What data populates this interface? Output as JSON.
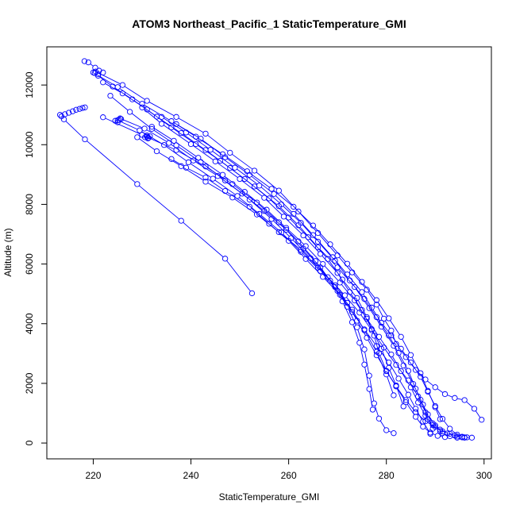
{
  "chart_data": {
    "type": "line",
    "title": "ATOM3 Northeast_Pacific_1 StaticTemperature_GMI",
    "xlabel": "StaticTemperature_GMI",
    "ylabel": "Altitude (m)",
    "xlim": [
      210.5,
      301.5
    ],
    "ylim": [
      -530,
      13280
    ],
    "xticks": [
      220,
      240,
      260,
      280,
      300
    ],
    "yticks": [
      0,
      2000,
      4000,
      6000,
      8000,
      10000,
      12000
    ],
    "marker": "open-circle",
    "line_color": "#0000ff",
    "grid": false,
    "series": [
      {
        "x": [
          213.2,
          213.5,
          214.2,
          215.0,
          215.8,
          216.5,
          217.2,
          217.8,
          218.3
        ],
        "y": [
          11000,
          10950,
          11020,
          11070,
          11120,
          11170,
          11200,
          11230,
          11250
        ]
      },
      {
        "x": [
          214.0,
          218.3,
          229.0,
          238.0,
          247.0,
          252.5
        ],
        "y": [
          10850,
          10180,
          8680,
          7450,
          6180,
          5020
        ]
      },
      {
        "x": [
          218.2,
          219.0,
          220.4,
          221.2,
          222.0,
          221.0,
          220.3
        ],
        "y": [
          12800,
          12760,
          12580,
          12480,
          12420,
          12360,
          12400
        ]
      },
      {
        "x": [
          220.5,
          226.0,
          231.0,
          237.0,
          243.0,
          248.0,
          253.0,
          258.0,
          262.0,
          266.0,
          270.0,
          273.0,
          276.0,
          278.0,
          279.5,
          281.0,
          282.0,
          284.0,
          286.0,
          288.0,
          290.0,
          292.0,
          294.0,
          296.0,
          298.0,
          299.5
        ],
        "y": [
          12450,
          12000,
          11470,
          10930,
          10370,
          9730,
          9130,
          8460,
          7760,
          7040,
          6290,
          5720,
          5140,
          4640,
          4170,
          3770,
          3320,
          2880,
          2450,
          2130,
          1870,
          1640,
          1510,
          1440,
          1150,
          780
        ]
      },
      {
        "x": [
          220.0,
          225.0,
          230.0,
          236.0,
          242.0,
          247.0,
          252.0,
          257.0,
          261.0,
          265.0,
          269.0,
          272.0,
          275.0,
          277.0,
          279.0,
          281.0,
          283.0,
          285.0,
          287.0,
          288.5,
          290.0,
          291.5,
          293.0,
          294.5,
          296.0,
          297.5
        ],
        "y": [
          12420,
          11930,
          11370,
          10790,
          10200,
          9580,
          8990,
          8350,
          7680,
          6970,
          6230,
          5650,
          5060,
          4540,
          4030,
          3610,
          3160,
          2700,
          2220,
          1720,
          1240,
          810,
          480,
          280,
          190,
          180
        ]
      },
      {
        "x": [
          221.0,
          224.0,
          228.0,
          233.0,
          238.0,
          243.0,
          248.0,
          253.0,
          258.0,
          262.0,
          266.0,
          270.0,
          273.5,
          276.5,
          279.0,
          281.5,
          283.5,
          285.5,
          287.0,
          288.5,
          290.0,
          291.5,
          293.0,
          294.5,
          296.0
        ],
        "y": [
          12310,
          11950,
          11520,
          10940,
          10390,
          9820,
          9220,
          8600,
          7940,
          7300,
          6560,
          5890,
          5230,
          4520,
          3900,
          3260,
          2600,
          1980,
          1450,
          960,
          590,
          330,
          230,
          180,
          180
        ]
      },
      {
        "x": [
          222.0,
          226.0,
          231.0,
          236.0,
          241.0,
          246.0,
          251.0,
          256.0,
          260.0,
          264.0,
          268.0,
          271.0,
          274.0,
          276.0,
          277.5,
          278.5,
          280.0,
          282.0,
          284.0,
          286.0,
          288.0,
          290.0,
          291.5,
          293.0,
          294.5,
          295.5
        ],
        "y": [
          12090,
          11720,
          11180,
          10580,
          10020,
          9460,
          8850,
          8200,
          7560,
          6900,
          6170,
          5480,
          4860,
          4220,
          3600,
          3010,
          2420,
          1900,
          1440,
          1040,
          730,
          540,
          390,
          310,
          220,
          190
        ]
      },
      {
        "x": [
          223.5,
          227.5,
          232.0,
          237.0,
          242.0,
          247.0,
          252.0,
          256.5,
          260.5,
          264.5,
          268.0,
          271.5,
          274.5,
          277.0,
          279.5,
          282.0,
          284.5,
          286.5,
          288.0,
          289.5,
          291.0,
          292.5,
          294.0,
          295.5,
          296.5
        ],
        "y": [
          11640,
          11100,
          10530,
          9980,
          9420,
          8800,
          8160,
          7510,
          6870,
          6190,
          5560,
          4950,
          4370,
          3780,
          3200,
          2620,
          2100,
          1560,
          1030,
          660,
          450,
          320,
          250,
          210,
          190
        ]
      },
      {
        "x": [
          225.0,
          229.5,
          234.5,
          239.5,
          244.5,
          249.5,
          254.0,
          258.5,
          262.5,
          266.5,
          270.0,
          273.0,
          275.5,
          278.0,
          280.0,
          281.5
        ],
        "y": [
          10820,
          10480,
          9990,
          9410,
          8860,
          8280,
          7680,
          7060,
          6410,
          5760,
          5100,
          4470,
          3780,
          3060,
          2300,
          1600
        ]
      },
      {
        "x": [
          225.5,
          230.5,
          235.5,
          240.5,
          245.5,
          250.5,
          255.0,
          259.5,
          263.0,
          266.5,
          269.5,
          272.0,
          274.0,
          275.5,
          276.5,
          277.5,
          278.5,
          280.0,
          281.5
        ],
        "y": [
          10880,
          10540,
          10060,
          9470,
          8950,
          8360,
          7780,
          7150,
          6520,
          5890,
          5230,
          4570,
          3880,
          3140,
          2260,
          1330,
          820,
          430,
          330
        ]
      },
      {
        "x": [
          222.0,
          230.0,
          237.0,
          243.0,
          248.5,
          253.5,
          258.0,
          262.0,
          265.5,
          268.5,
          271.0,
          273.0,
          274.5,
          275.5,
          276.5,
          277.2
        ],
        "y": [
          10920,
          10330,
          9820,
          9270,
          8680,
          8060,
          7400,
          6760,
          6100,
          5440,
          4750,
          4050,
          3360,
          2630,
          1810,
          1120
        ]
      },
      {
        "x": [
          229.0,
          233.0,
          238.0,
          243.0,
          248.5,
          253.5,
          258.0,
          262.5,
          266.0,
          269.5,
          272.0,
          274.0,
          276.0,
          278.0,
          280.0,
          282.0,
          284.0,
          286.0,
          287.5,
          289.0,
          290.5,
          292.0
        ],
        "y": [
          10250,
          9780,
          9280,
          8760,
          8230,
          7660,
          7070,
          6480,
          5880,
          5290,
          4700,
          4100,
          3530,
          2940,
          2410,
          1900,
          1370,
          880,
          550,
          350,
          240,
          200
        ]
      },
      {
        "x": [
          232.0,
          236.5,
          241.5,
          246.5,
          251.0,
          255.5,
          259.5,
          263.5,
          267.0,
          270.5,
          273.5,
          276.0,
          278.5,
          281.0,
          283.0,
          285.0,
          286.5,
          288.0,
          289.5,
          291.0
        ],
        "y": [
          10600,
          10130,
          9560,
          8990,
          8420,
          7820,
          7210,
          6600,
          6000,
          5380,
          4780,
          4170,
          3560,
          2970,
          2410,
          1870,
          1360,
          920,
          600,
          400
        ]
      },
      {
        "x": [
          234.0,
          239.0,
          244.0,
          249.0,
          254.0,
          258.5,
          262.5,
          266.0,
          269.5,
          272.5,
          275.5,
          278.0,
          280.5,
          282.5,
          284.5,
          286.0,
          287.5,
          288.5,
          289.5
        ],
        "y": [
          10930,
          10410,
          9830,
          9230,
          8630,
          8000,
          7380,
          6750,
          6110,
          5450,
          4830,
          4220,
          3600,
          3020,
          2420,
          1820,
          1290,
          800,
          480
        ]
      },
      {
        "x": [
          231.0,
          231.3,
          231.6,
          231.0,
          230.6,
          231.2
        ],
        "y": [
          10270,
          10230,
          10280,
          10310,
          10250,
          10210
        ]
      },
      {
        "x": [
          224.5,
          225.0,
          225.7,
          225.3
        ],
        "y": [
          10800,
          10750,
          10860,
          10830
        ]
      },
      {
        "x": [
          237.0,
          241.0,
          246.5,
          251.5,
          256.5,
          261.0,
          265.0,
          268.5,
          272.0,
          275.0,
          278.0,
          280.5,
          283.0,
          285.0,
          287.0,
          288.5,
          290.0,
          291.0
        ],
        "y": [
          10690,
          10270,
          9680,
          9110,
          8520,
          7920,
          7290,
          6660,
          6010,
          5400,
          4790,
          4180,
          3560,
          2950,
          2340,
          1750,
          1200,
          800
        ]
      },
      {
        "x": [
          230.0,
          234.0,
          240.0,
          245.0,
          250.0,
          255.0,
          259.0,
          263.0,
          266.5,
          270.0,
          272.5,
          275.0,
          277.0,
          279.0,
          280.5,
          282.0,
          283.5
        ],
        "y": [
          11250,
          10700,
          10020,
          9440,
          8850,
          8220,
          7590,
          6960,
          6340,
          5700,
          5060,
          4460,
          3820,
          3160,
          2520,
          1930,
          1230
        ]
      },
      {
        "x": [
          236.0,
          239.0,
          243.0,
          247.0,
          252.0,
          256.0,
          260.0,
          263.5,
          267.0,
          270.5,
          273.0,
          275.5,
          278.0,
          280.5,
          282.5,
          284.5,
          286.0,
          287.5,
          289.0
        ],
        "y": [
          9520,
          9230,
          8900,
          8450,
          7920,
          7350,
          6780,
          6170,
          5570,
          4970,
          4390,
          3810,
          3250,
          2700,
          2160,
          1620,
          1150,
          720,
          310
        ]
      }
    ]
  }
}
